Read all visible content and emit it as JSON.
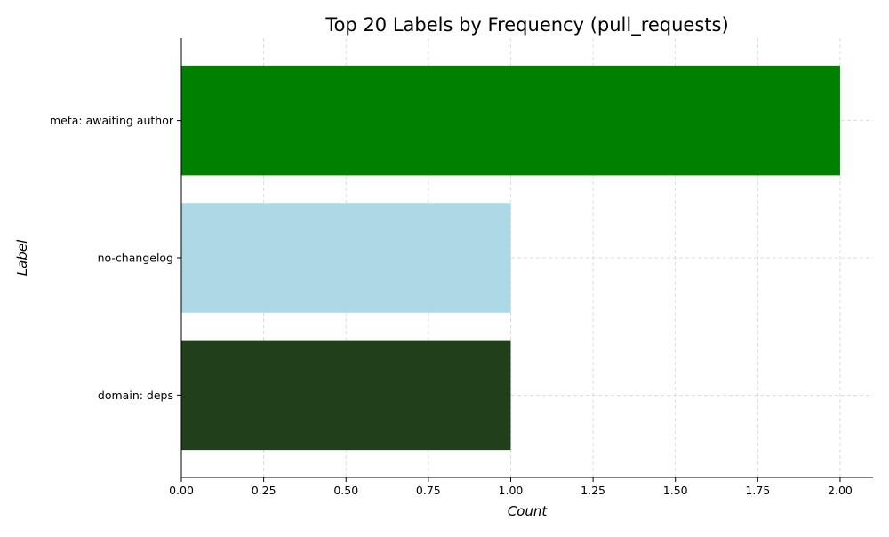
{
  "chart_data": {
    "type": "bar",
    "orientation": "horizontal",
    "title": "Top 20 Labels by Frequency (pull_requests)",
    "xlabel": "Count",
    "ylabel": "Label",
    "categories": [
      "meta: awaiting author",
      "no-changelog",
      "domain: deps"
    ],
    "values": [
      2,
      1,
      1
    ],
    "colors": [
      "#008000",
      "#add8e6",
      "#213f1b"
    ],
    "xlim": [
      0,
      2.1
    ],
    "xticks": [
      "0.00",
      "0.25",
      "0.50",
      "0.75",
      "1.00",
      "1.25",
      "1.50",
      "1.75",
      "2.00"
    ],
    "grid": true,
    "legend": "none"
  }
}
